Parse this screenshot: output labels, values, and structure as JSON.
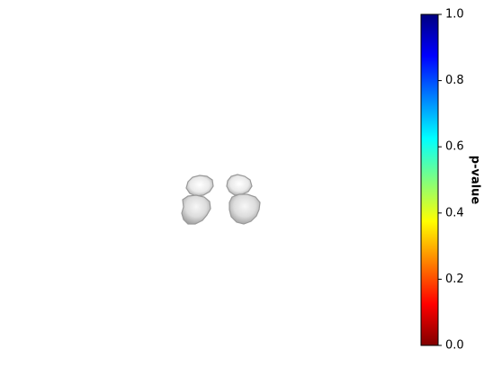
{
  "chart_data": {
    "type": "heatmap",
    "subtype": "brain-slice-with-colorbar",
    "title": "",
    "colorbar": {
      "label": "p-value",
      "colormap": "jet_r",
      "vmin": 0.0,
      "vmax": 1.0,
      "ticks": [
        0.0,
        0.2,
        0.4,
        0.6,
        0.8,
        1.0
      ],
      "tick_labels": [
        "0.0",
        "0.2",
        "0.4",
        "0.6",
        "0.8",
        "1.0"
      ],
      "colors": [
        "#800000",
        "#ff0000",
        "#ff8000",
        "#ffff00",
        "#80ff80",
        "#00ffff",
        "#0080ff",
        "#0000ff",
        "#000080"
      ]
    },
    "image": {
      "description_kind": "grayscale-anatomy-overlay",
      "overlay_values": [],
      "background_colors": [
        "#ffffff",
        "#f2f2f2",
        "#d9d9d9",
        "#b3b3b3",
        "#8c8c8c"
      ]
    },
    "axes_visible": false,
    "grid": false
  }
}
